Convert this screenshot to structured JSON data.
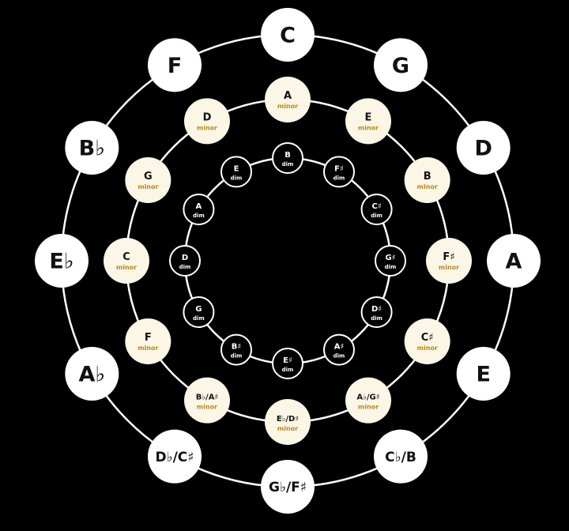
{
  "colors": {
    "background": "#000000",
    "ring_line": "#ffffff",
    "major_fill": "#ffffff",
    "major_text": "#111111",
    "minor_fill": "#fbf6e6",
    "minor_text": "#111111",
    "minor_sub_text": "#b58a1f",
    "dim_fill": "#000000",
    "dim_stroke": "#ffffff",
    "dim_text": "#ffffff"
  },
  "rings": {
    "major": {
      "keys": [
        "C",
        "G",
        "D",
        "A",
        "E",
        "C♭/B",
        "G♭/F♯",
        "D♭/C♯",
        "A♭",
        "E♭",
        "B♭",
        "F"
      ]
    },
    "minor": {
      "sub_label": "minor",
      "keys": [
        "A",
        "E",
        "B",
        "F♯",
        "C♯",
        "A♭/G♯",
        "E♭/D♯",
        "B♭/A♯",
        "F",
        "C",
        "G",
        "D"
      ]
    },
    "diminished": {
      "sub_label": "dim",
      "keys": [
        "B",
        "F♯",
        "C♯",
        "G♯",
        "D♯",
        "A♯",
        "E♯",
        "B♯",
        "G",
        "D",
        "A",
        "E"
      ]
    }
  }
}
